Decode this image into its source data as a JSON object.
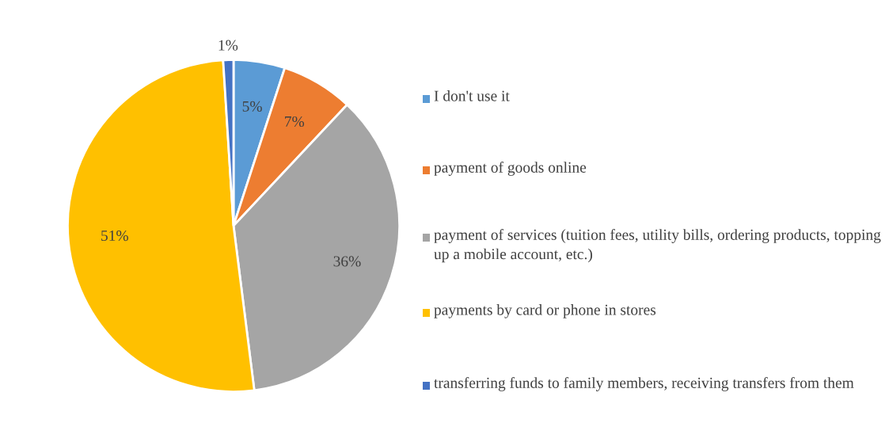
{
  "chart_data": {
    "type": "pie",
    "categories": [
      "I don't use it",
      "payment of goods online",
      "payment of services (tuition fees, utility bills, ordering products, topping up a mobile account, etc.)",
      "payments by card or phone in stores",
      "transferring funds to family members, receiving transfers from them"
    ],
    "values": [
      5,
      7,
      36,
      51,
      1
    ],
    "colors": [
      "#5b9bd5",
      "#ed7d31",
      "#a5a5a5",
      "#ffc000",
      "#4472c4"
    ],
    "value_labels": [
      "5%",
      "7%",
      "36%",
      "51%",
      "1%"
    ],
    "legend": "right"
  }
}
